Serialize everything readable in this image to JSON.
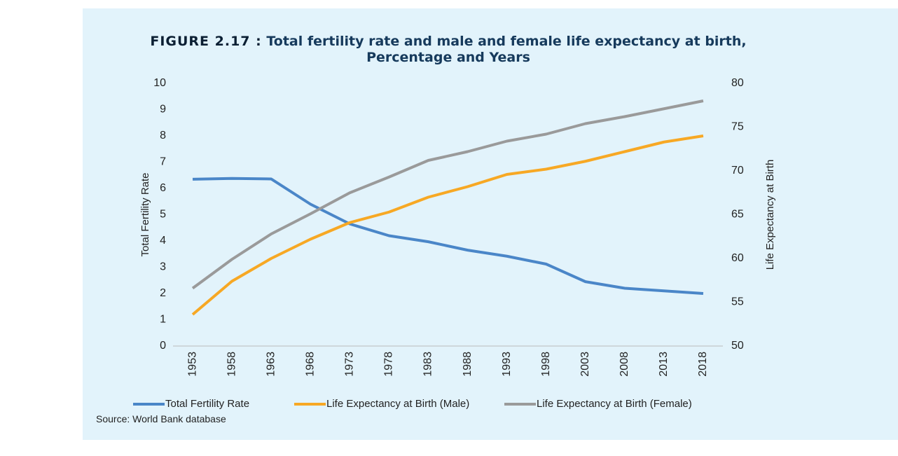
{
  "chart_data": {
    "type": "line",
    "figure_label": "FIGURE 2.17 :",
    "title": "Total fertility rate and male and female life expectancy at birth, Percentage and Years",
    "y_label": "Total Fertility Rate",
    "y2_label": "Life Expectancy at Birth",
    "source": "Source: World Bank database",
    "categories": [
      "1953",
      "1958",
      "1963",
      "1968",
      "1973",
      "1978",
      "1983",
      "1988",
      "1993",
      "1998",
      "2003",
      "2008",
      "2013",
      "2018"
    ],
    "ylim": [
      0,
      10
    ],
    "yticks": [
      0,
      1,
      2,
      3,
      4,
      5,
      6,
      7,
      8,
      9,
      10
    ],
    "y2lim": [
      50,
      80
    ],
    "y2ticks": [
      50,
      55,
      60,
      65,
      70,
      75,
      80
    ],
    "legend": "bottom",
    "series": [
      {
        "name": "Total Fertility Rate",
        "color": "#4a86c8",
        "values": [
          6.35,
          6.38,
          6.36,
          5.4,
          4.65,
          4.2,
          3.97,
          3.65,
          3.42,
          3.12,
          2.45,
          2.2,
          2.1,
          2.0
        ]
      },
      {
        "name": "Life Expectancy at Birth (Male)",
        "color": "#f7a824",
        "axis": "y2",
        "values": [
          53.6,
          57.4,
          60.0,
          62.2,
          64.1,
          65.3,
          67.0,
          68.2,
          69.6,
          70.2,
          71.1,
          72.2,
          73.3,
          74.0
        ]
      },
      {
        "name": "Life Expectancy at Birth (Female)",
        "color": "#9a9a9a",
        "axis": "y2",
        "values": [
          56.6,
          59.9,
          62.8,
          65.1,
          67.5,
          69.3,
          71.2,
          72.2,
          73.4,
          74.2,
          75.4,
          76.2,
          77.1,
          78.0
        ]
      }
    ]
  }
}
